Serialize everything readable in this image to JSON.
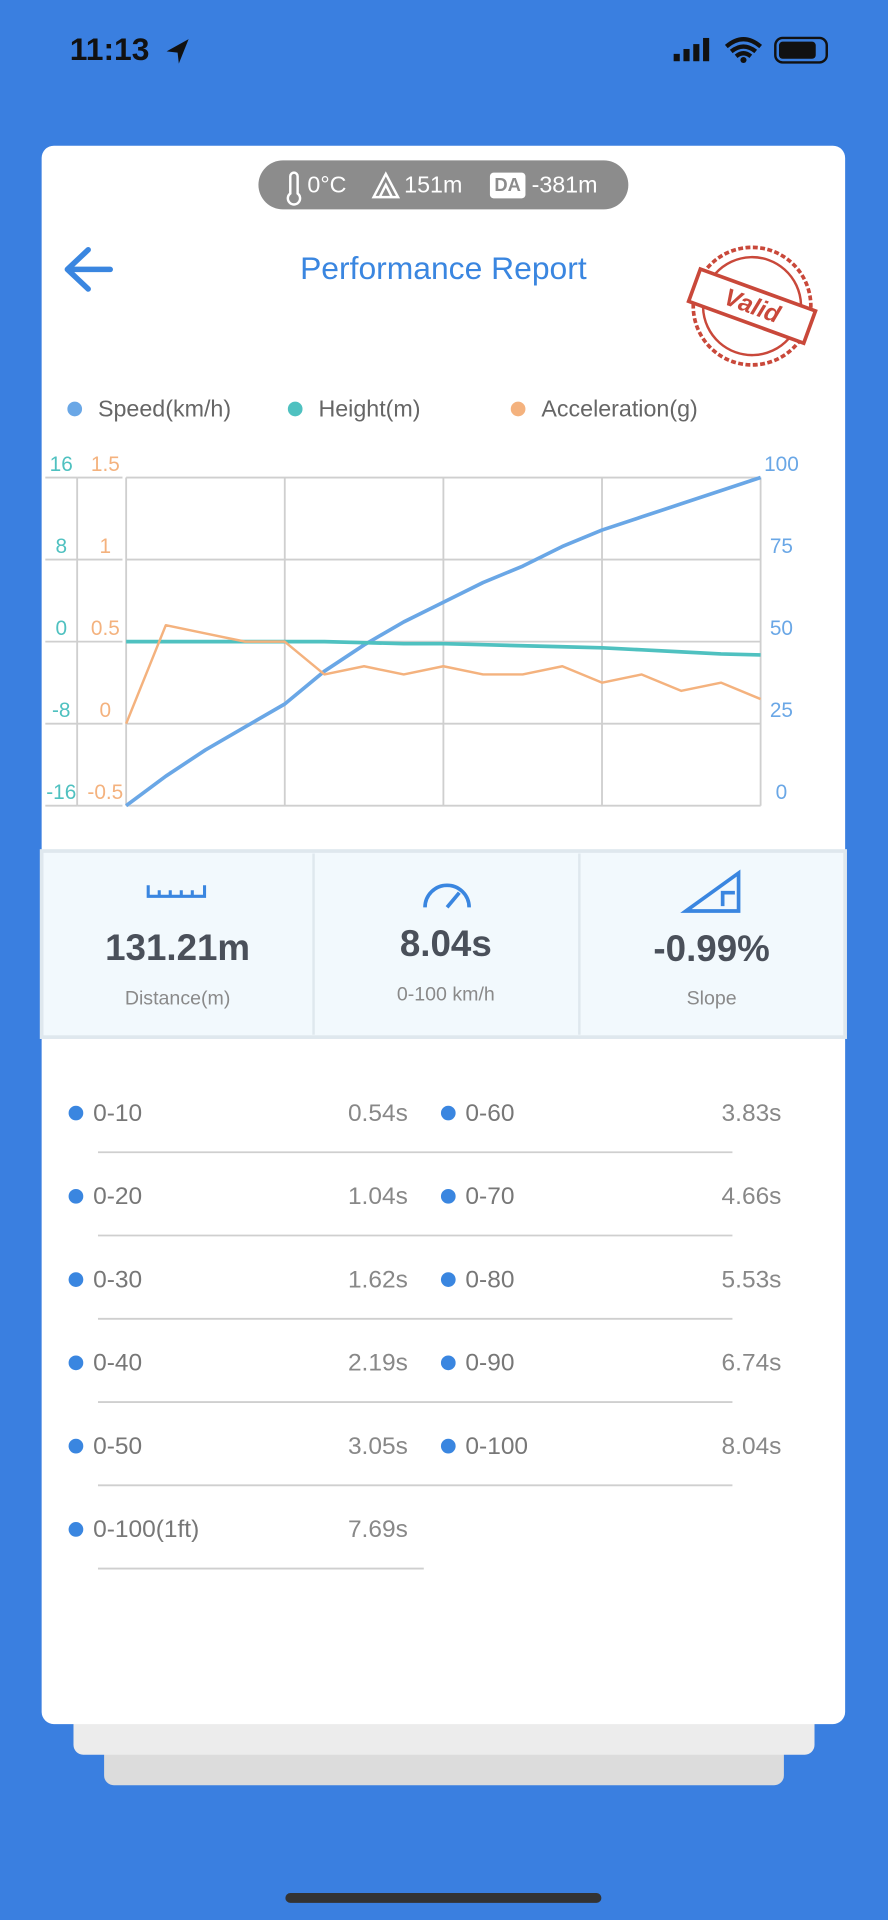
{
  "status_bar": {
    "time": "11:13"
  },
  "conditions": {
    "temperature": "0°C",
    "altitude": "151m",
    "da_badge": "DA",
    "density_altitude": "-381m"
  },
  "header": {
    "title": "Performance Report",
    "stamp": "Valid"
  },
  "chart_data": {
    "type": "line",
    "grid": true,
    "ylim": [
      -0.5,
      1.5
    ],
    "yticks": [
      -0.5,
      0,
      0.5,
      1,
      1.5
    ],
    "y2lim": [
      0,
      100
    ],
    "y2ticks": [
      0,
      25,
      50,
      75,
      100
    ],
    "y3lim": [
      -16,
      16
    ],
    "y3ticks": [
      -16,
      -8,
      0,
      8,
      16
    ],
    "series": [
      {
        "name": "Speed(km/h)",
        "color": "#6aa7e6",
        "axis": "y2",
        "values": [
          0,
          9,
          17,
          24,
          31,
          41,
          49,
          56,
          62,
          68,
          73,
          79,
          84,
          88,
          92,
          96,
          100
        ]
      },
      {
        "name": "Height(m)",
        "color": "#4fc1c0",
        "axis": "y3",
        "values": [
          0,
          0,
          0,
          0,
          0,
          0,
          -0.1,
          -0.2,
          -0.2,
          -0.3,
          -0.4,
          -0.5,
          -0.6,
          -0.8,
          -1,
          -1.2,
          -1.3
        ]
      },
      {
        "name": "Acceleration(g)",
        "color": "#f4b27e",
        "axis": "y",
        "values": [
          0,
          0.6,
          0.55,
          0.5,
          0.5,
          0.3,
          0.35,
          0.3,
          0.35,
          0.3,
          0.3,
          0.35,
          0.25,
          0.3,
          0.2,
          0.25,
          0.15
        ]
      }
    ]
  },
  "summary": [
    {
      "value": "131.21m",
      "label": "Distance(m)"
    },
    {
      "value": "8.04s",
      "label": "0-100 km/h"
    },
    {
      "value": "-0.99%",
      "label": "Slope"
    }
  ],
  "splits": [
    {
      "label": "0-10",
      "time": "0.54s"
    },
    {
      "label": "0-60",
      "time": "3.83s"
    },
    {
      "label": "0-20",
      "time": "1.04s"
    },
    {
      "label": "0-70",
      "time": "4.66s"
    },
    {
      "label": "0-30",
      "time": "1.62s"
    },
    {
      "label": "0-80",
      "time": "5.53s"
    },
    {
      "label": "0-40",
      "time": "2.19s"
    },
    {
      "label": "0-90",
      "time": "6.74s"
    },
    {
      "label": "0-50",
      "time": "3.05s"
    },
    {
      "label": "0-100",
      "time": "8.04s"
    },
    {
      "label": "0-100(1ft)",
      "time": "7.69s"
    }
  ]
}
